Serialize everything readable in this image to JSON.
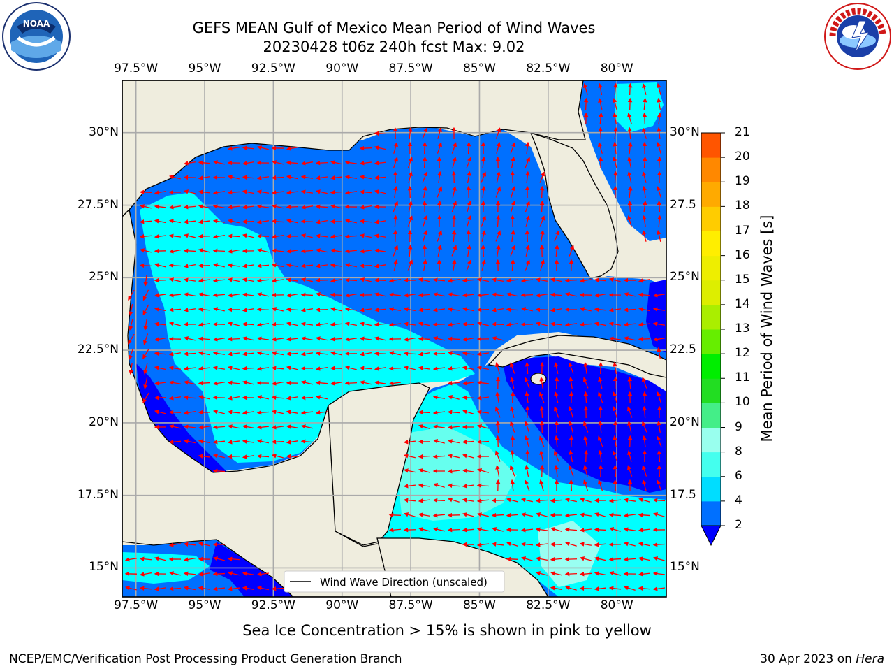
{
  "title_line1": "GEFS MEAN Gulf of Mexico Mean Period of Wind Waves",
  "title_line2": "20230428 t06z 240h fcst   Max: 9.02",
  "caption": "Sea Ice Concentration > 15% is shown in pink to yellow",
  "footer_left": "NCEP/EMC/Verification Post Processing Product Generation Branch",
  "footer_right_date": "30 Apr 2023 on ",
  "footer_right_host": "Hera",
  "logos": {
    "left": "NOAA",
    "right": "NATIONAL WEATHER SERVICE"
  },
  "legend_label": "Wind Wave Direction (unscaled)",
  "chart_data": {
    "type": "heatmap",
    "variable": "Mean Period of Wind Waves",
    "colorbar_label": "Mean Period of Wind Waves [s]",
    "colorbar_levels": [
      2,
      4,
      6,
      8,
      9,
      10,
      11,
      12,
      13,
      14,
      15,
      16,
      17,
      18,
      19,
      20,
      21
    ],
    "colorbar_colors": [
      "#0070ff",
      "#00ddff",
      "#44ffee",
      "#99ffee",
      "#44ee88",
      "#22dd22",
      "#00ee00",
      "#66ee00",
      "#aaee00",
      "#ddee00",
      "#eeee00",
      "#ffee00",
      "#ffcc00",
      "#ffaa00",
      "#ff8800",
      "#ff5500",
      "#ff2200"
    ],
    "colorbar_extend": "min",
    "colorbar_min_color": "#0000ff",
    "max_value": 9.02,
    "x_ticks": [
      "97.5°W",
      "95°W",
      "92.5°W",
      "90°W",
      "87.5°W",
      "85°W",
      "82.5°W",
      "80°W"
    ],
    "y_ticks_left": [
      "30°N",
      "27.5°N",
      "25°N",
      "22.5°N",
      "20°N",
      "17.5°N",
      "15°N"
    ],
    "y_ticks_right": [
      "30°N",
      "27.5",
      "25°N",
      "22.5",
      "20°N",
      "17.5",
      "15°N"
    ],
    "xlim": [
      -98,
      -78.2
    ],
    "ylim": [
      14,
      31.8
    ],
    "grid": true,
    "legend_placement": "bottom-center"
  }
}
